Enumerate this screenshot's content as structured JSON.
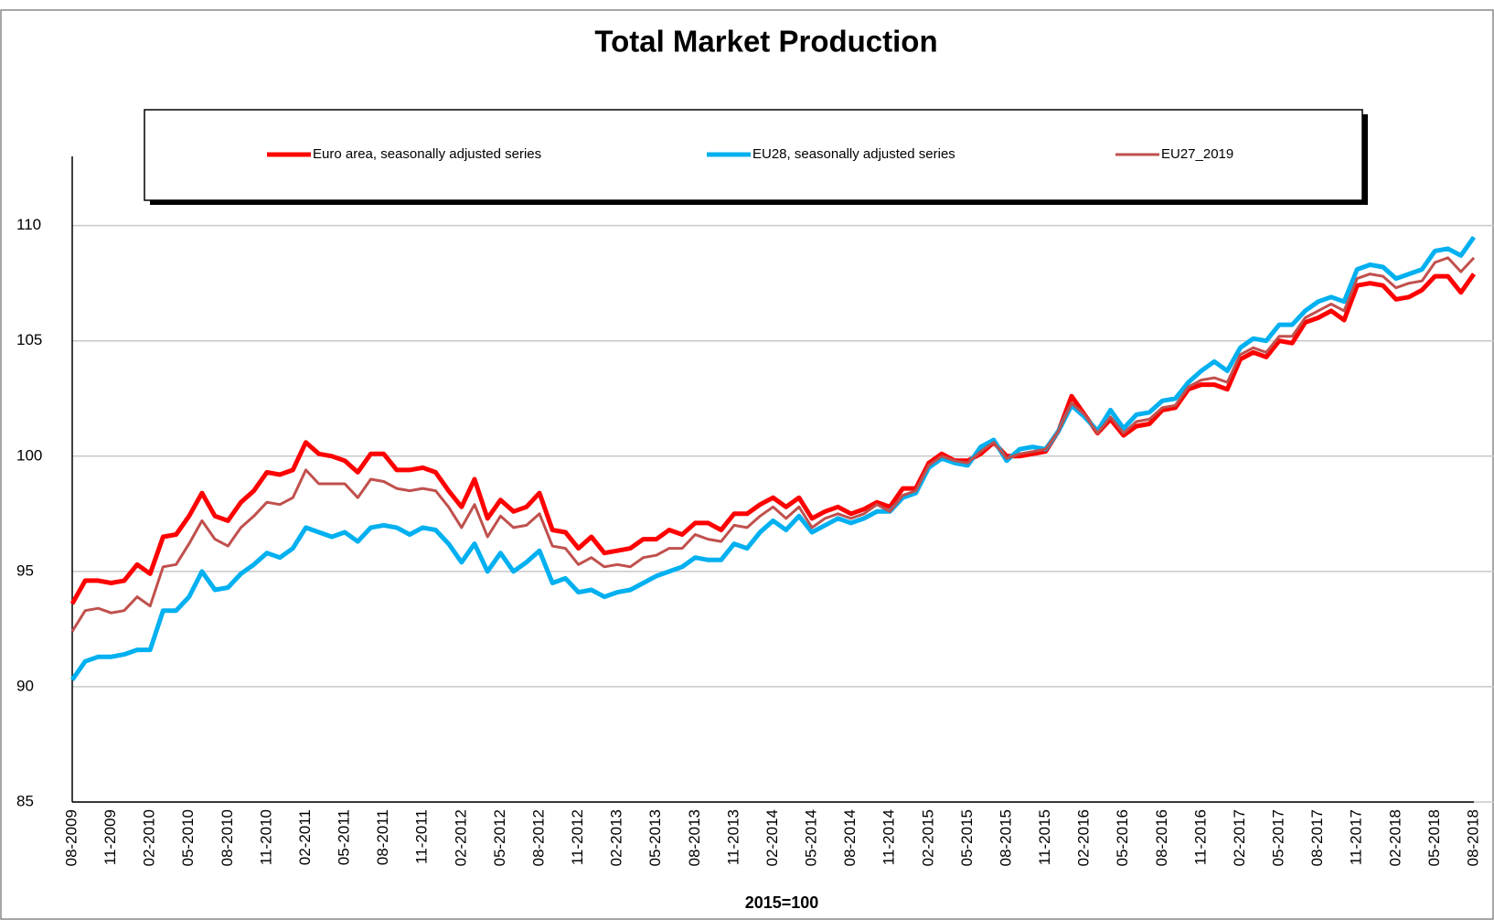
{
  "chart_data": {
    "type": "line",
    "title": "Total Market Production",
    "x_label": "2015=100",
    "categories": [
      "08-2009",
      null,
      null,
      "11-2009",
      null,
      null,
      "02-2010",
      null,
      null,
      "05-2010",
      null,
      null,
      "08-2010",
      null,
      null,
      "11-2010",
      null,
      null,
      "02-2011",
      null,
      null,
      "05-2011",
      null,
      null,
      "08-2011",
      null,
      null,
      "11-2011",
      null,
      null,
      "02-2012",
      null,
      null,
      "05-2012",
      null,
      null,
      "08-2012",
      null,
      null,
      "11-2012",
      null,
      null,
      "02-2013",
      null,
      null,
      "05-2013",
      null,
      null,
      "08-2013",
      null,
      null,
      "11-2013",
      null,
      null,
      "02-2014",
      null,
      null,
      "05-2014",
      null,
      null,
      "08-2014",
      null,
      null,
      "11-2014",
      null,
      null,
      "02-2015",
      null,
      null,
      "05-2015",
      null,
      null,
      "08-2015",
      null,
      null,
      "11-2015",
      null,
      null,
      "02-2016",
      null,
      null,
      "05-2016",
      null,
      null,
      "08-2016",
      null,
      null,
      "11-2016",
      null,
      null,
      "02-2017",
      null,
      null,
      "05-2017",
      null,
      null,
      "08-2017",
      null,
      null,
      "11-2017",
      null,
      null,
      "02-2018",
      null,
      null,
      "05-2018",
      null,
      null,
      "08-2018"
    ],
    "series": [
      {
        "name": "Euro area, seasonally adjusted series",
        "color": "#ff0000",
        "values": [
          93.6,
          94.6,
          94.6,
          94.5,
          94.6,
          95.3,
          94.9,
          96.5,
          96.6,
          97.4,
          98.4,
          97.4,
          97.2,
          98.0,
          98.5,
          99.3,
          99.2,
          99.4,
          100.6,
          100.1,
          100.0,
          99.8,
          99.3,
          100.1,
          100.1,
          99.4,
          99.4,
          99.5,
          99.3,
          98.5,
          97.8,
          99.0,
          97.3,
          98.1,
          97.6,
          97.8,
          98.4,
          96.8,
          96.7,
          96.0,
          96.5,
          95.8,
          95.9,
          96.0,
          96.4,
          96.4,
          96.8,
          96.6,
          97.1,
          97.1,
          96.8,
          97.5,
          97.5,
          97.9,
          98.2,
          97.8,
          98.2,
          97.3,
          97.6,
          97.8,
          97.5,
          97.7,
          98.0,
          97.8,
          98.6,
          98.6,
          99.7,
          100.1,
          99.8,
          99.8,
          100.1,
          100.6,
          100.0,
          100.0,
          100.1,
          100.2,
          101.1,
          102.6,
          101.8,
          101.0,
          101.6,
          100.9,
          101.3,
          101.4,
          102.0,
          102.1,
          102.9,
          103.1,
          103.1,
          102.9,
          104.2,
          104.5,
          104.3,
          105.0,
          104.9,
          105.8,
          106.0,
          106.3,
          105.9,
          107.4,
          107.5,
          107.4,
          106.8,
          106.9,
          107.2,
          107.8,
          107.8,
          107.1,
          107.9
        ]
      },
      {
        "name": "EU28, seasonally adjusted series",
        "color": "#00b0f0",
        "values": [
          90.3,
          91.1,
          91.3,
          91.3,
          91.4,
          91.6,
          91.6,
          93.3,
          93.3,
          93.9,
          95.0,
          94.2,
          94.3,
          94.9,
          95.3,
          95.8,
          95.6,
          96.0,
          96.9,
          96.7,
          96.5,
          96.7,
          96.3,
          96.9,
          97.0,
          96.9,
          96.6,
          96.9,
          96.8,
          96.2,
          95.4,
          96.2,
          95.0,
          95.8,
          95.0,
          95.4,
          95.9,
          94.5,
          94.7,
          94.1,
          94.2,
          93.9,
          94.1,
          94.2,
          94.5,
          94.8,
          95.0,
          95.2,
          95.6,
          95.5,
          95.5,
          96.2,
          96.0,
          96.7,
          97.2,
          96.8,
          97.4,
          96.7,
          97.0,
          97.3,
          97.1,
          97.3,
          97.6,
          97.6,
          98.2,
          98.4,
          99.5,
          99.9,
          99.7,
          99.6,
          100.4,
          100.7,
          99.8,
          100.3,
          100.4,
          100.3,
          101.1,
          102.2,
          101.7,
          101.1,
          102.0,
          101.2,
          101.8,
          101.9,
          102.4,
          102.5,
          103.2,
          103.7,
          104.1,
          103.7,
          104.7,
          105.1,
          105.0,
          105.7,
          105.7,
          106.3,
          106.7,
          106.9,
          106.7,
          108.1,
          108.3,
          108.2,
          107.7,
          107.9,
          108.1,
          108.9,
          109.0,
          108.7,
          109.5
        ]
      },
      {
        "name": "EU27_2019",
        "color": "#c0504d",
        "values": [
          92.4,
          93.3,
          93.4,
          93.2,
          93.3,
          93.9,
          93.5,
          95.2,
          95.3,
          96.2,
          97.2,
          96.4,
          96.1,
          96.9,
          97.4,
          98.0,
          97.9,
          98.2,
          99.4,
          98.8,
          98.8,
          98.8,
          98.2,
          99.0,
          98.9,
          98.6,
          98.5,
          98.6,
          98.5,
          97.8,
          96.9,
          97.9,
          96.5,
          97.4,
          96.9,
          97.0,
          97.5,
          96.1,
          96.0,
          95.3,
          95.6,
          95.2,
          95.3,
          95.2,
          95.6,
          95.7,
          96.0,
          96.0,
          96.6,
          96.4,
          96.3,
          97.0,
          96.9,
          97.4,
          97.8,
          97.3,
          97.8,
          96.9,
          97.3,
          97.5,
          97.3,
          97.5,
          97.9,
          97.6,
          98.3,
          98.5,
          99.6,
          100.0,
          99.8,
          99.7,
          100.2,
          100.6,
          99.9,
          100.1,
          100.2,
          100.3,
          101.1,
          102.3,
          101.8,
          101.0,
          101.7,
          101.0,
          101.5,
          101.6,
          102.1,
          102.2,
          103.0,
          103.3,
          103.4,
          103.2,
          104.4,
          104.7,
          104.5,
          105.2,
          105.2,
          106.0,
          106.3,
          106.6,
          106.3,
          107.7,
          107.9,
          107.8,
          107.3,
          107.5,
          107.6,
          108.4,
          108.6,
          108.0,
          108.6
        ]
      }
    ],
    "ylim": [
      85,
      113
    ],
    "yticks": [
      85,
      90,
      95,
      100,
      105,
      110
    ],
    "grid": true,
    "legend": "top"
  }
}
